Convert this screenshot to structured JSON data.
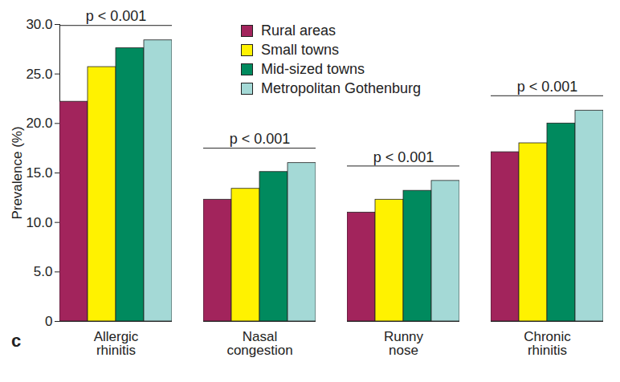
{
  "chart_data": {
    "type": "bar",
    "categories": [
      "Allergic rhinitis",
      "Nasal congestion",
      "Runny nose",
      "Chronic rhinitis"
    ],
    "series": [
      {
        "name": "Rural areas",
        "color": "#a2245c",
        "values": [
          22.2,
          12.3,
          11.0,
          17.1
        ]
      },
      {
        "name": "Small towns",
        "color": "#fff200",
        "values": [
          25.7,
          13.4,
          12.3,
          18.0
        ]
      },
      {
        "name": "Mid-sized towns",
        "color": "#008a5e",
        "values": [
          27.6,
          15.1,
          13.2,
          20.0
        ]
      },
      {
        "name": "Metropolitan Gothenburg",
        "color": "#a4d9d6",
        "values": [
          28.4,
          16.0,
          14.2,
          21.3
        ]
      }
    ],
    "y_label": "Prevalence (%)",
    "ylim": [
      0,
      30
    ],
    "yticks": [
      0,
      {
        "value": 5,
        "label": "5.0"
      },
      {
        "value": 10,
        "label": "10.0"
      },
      {
        "value": 15,
        "label": "15.0"
      },
      {
        "value": 20,
        "label": "20.0"
      },
      {
        "value": 25,
        "label": "25.0"
      },
      {
        "value": 30,
        "label": "30.0"
      }
    ],
    "legend": "top",
    "annotations": [
      {
        "text": "p < 0.001",
        "category": "Allergic rhinitis"
      },
      {
        "text": "p < 0.001",
        "category": "Nasal congestion"
      },
      {
        "text": "p < 0.001",
        "category": "Runny nose"
      },
      {
        "text": "p < 0.001",
        "category": "Chronic rhinitis"
      }
    ],
    "panel_label": "c"
  }
}
